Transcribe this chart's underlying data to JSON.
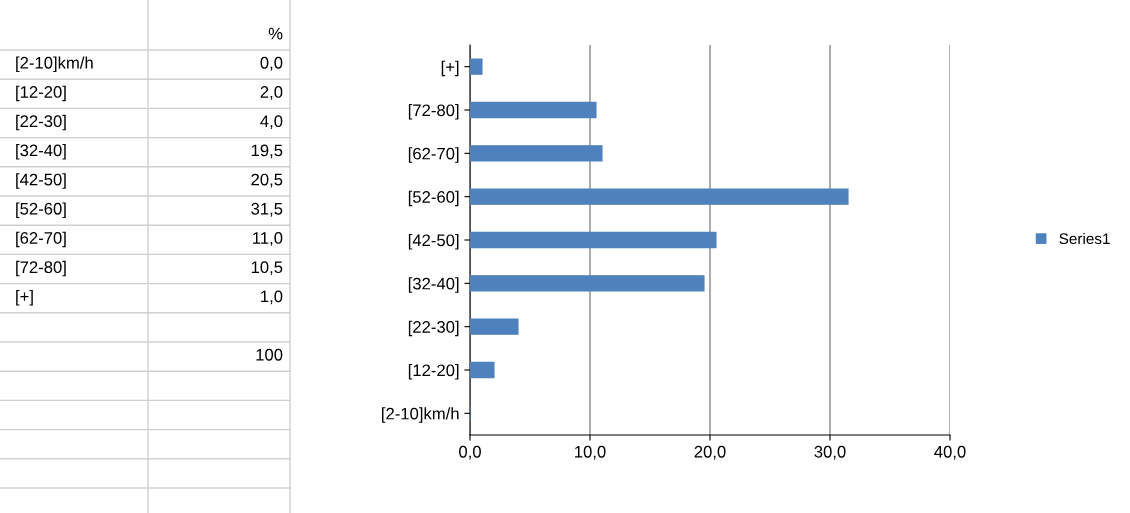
{
  "chart_data": {
    "type": "bar",
    "orientation": "horizontal",
    "categories": [
      "[+]",
      "[72-80]",
      "[62-70]",
      "[52-60]",
      "[42-50]",
      "[32-40]",
      "[22-30]",
      "[12-20]",
      "[2-10]km/h"
    ],
    "series": [
      {
        "name": "Series1",
        "color": "#4f81bd",
        "values": [
          1.0,
          10.5,
          11.0,
          31.5,
          20.5,
          19.5,
          4.0,
          2.0,
          0.0
        ]
      }
    ],
    "value_labels": [
      "1,0",
      "10,5",
      "11,0",
      "31,5",
      "20,5",
      "19,5",
      "4,0",
      "2,0",
      "0,0"
    ],
    "xlim": [
      0,
      40
    ],
    "xticks": [
      {
        "value": 0,
        "label": "0,0"
      },
      {
        "value": 10,
        "label": "10,0"
      },
      {
        "value": 20,
        "label": "20,0"
      },
      {
        "value": 30,
        "label": "30,0"
      },
      {
        "value": 40,
        "label": "40,0"
      }
    ],
    "grid": "x",
    "legend": "right",
    "annotations": [
      "%",
      "100"
    ]
  }
}
